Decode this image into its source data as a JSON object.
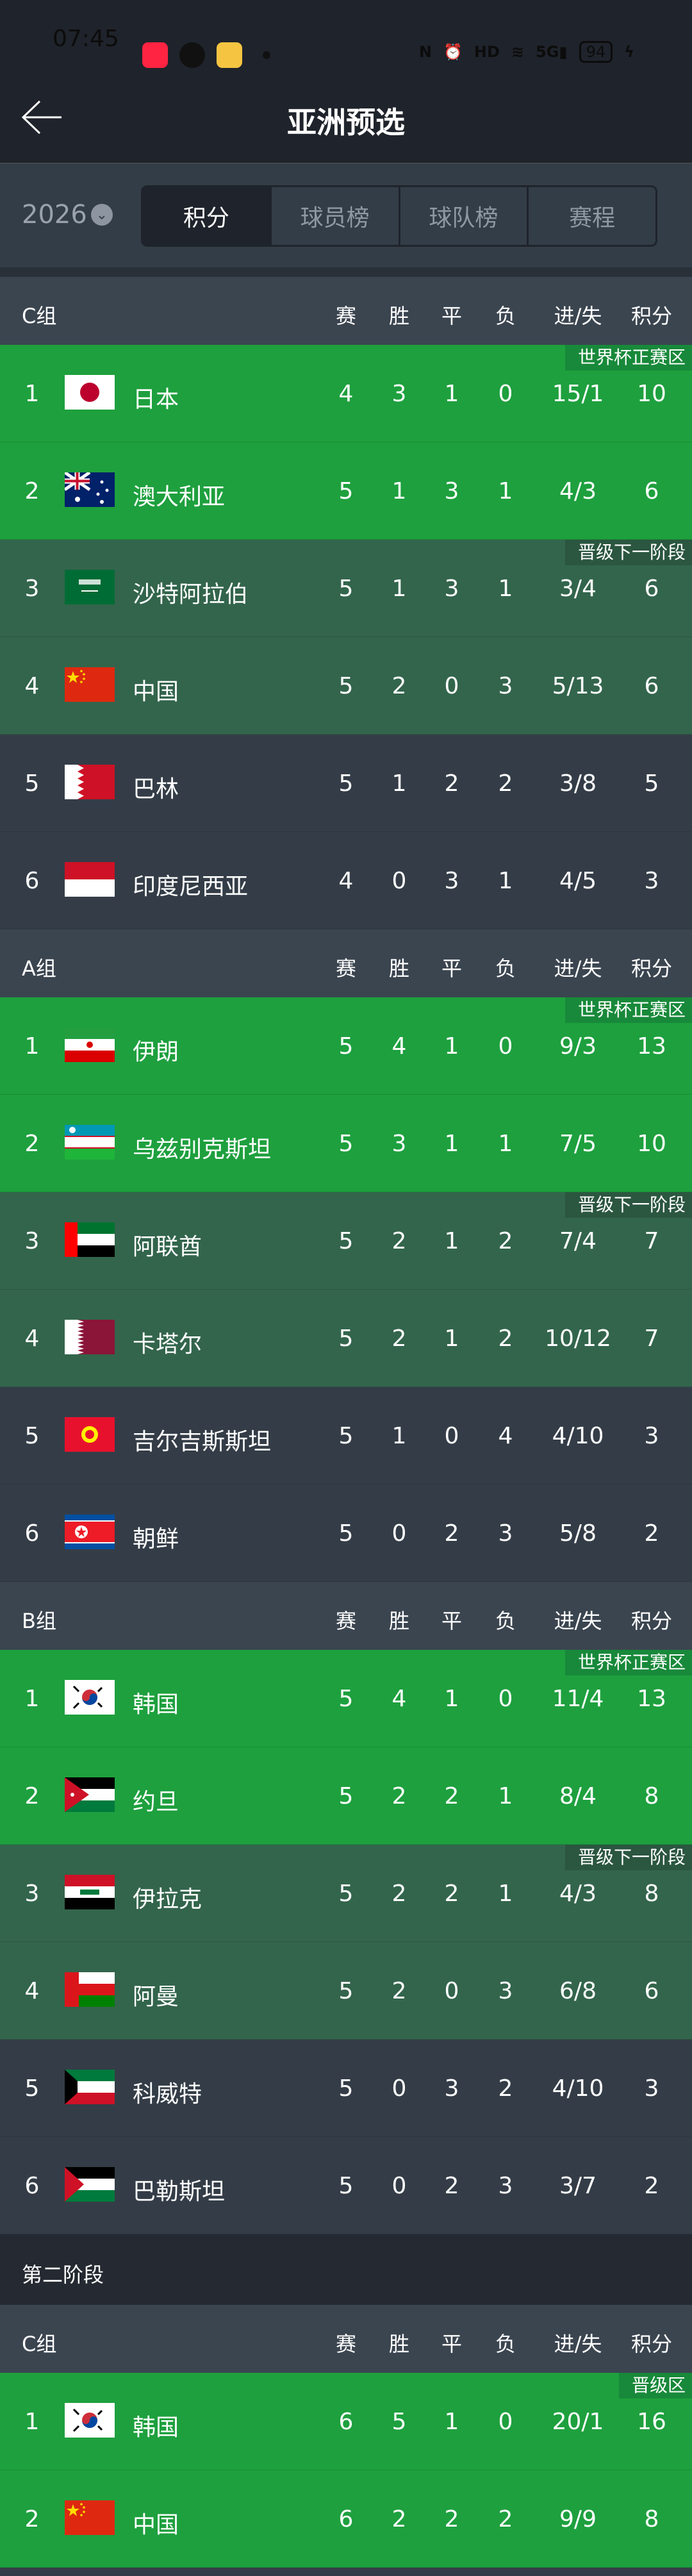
{
  "status_bar": {
    "time": "07:45",
    "battery": "94",
    "icons": [
      "xiaohongshu-app-icon",
      "settings-app-icon",
      "weibo-app-icon",
      "nfc-icon",
      "alarm-icon",
      "hd-icon",
      "wifi-icon",
      "5g-signal-icon",
      "charging-icon"
    ]
  },
  "header": {
    "title": "亚洲预选",
    "back_icon": "arrow-left-icon"
  },
  "filters": {
    "year": "2026",
    "tabs": [
      {
        "label": "积分",
        "active": true
      },
      {
        "label": "球员榜",
        "active": false
      },
      {
        "label": "球队榜",
        "active": false
      },
      {
        "label": "赛程",
        "active": false
      }
    ]
  },
  "columns": [
    "赛",
    "胜",
    "平",
    "负",
    "进/失",
    "积分"
  ],
  "zone_colors": {
    "green": "#1ea03e",
    "dkgreen": "#33654c",
    "gray": "#343d47"
  },
  "sections": [
    {
      "groups": [
        {
          "name": "C组",
          "rows": [
            {
              "rank": "1",
              "flag": "japan",
              "team": "日本",
              "p": "4",
              "w": "3",
              "d": "1",
              "l": "0",
              "gd": "15/1",
              "pts": "10",
              "zone": "green",
              "badge": "世界杯正赛区"
            },
            {
              "rank": "2",
              "flag": "australia",
              "team": "澳大利亚",
              "p": "5",
              "w": "1",
              "d": "3",
              "l": "1",
              "gd": "4/3",
              "pts": "6",
              "zone": "green"
            },
            {
              "rank": "3",
              "flag": "saudi",
              "team": "沙特阿拉伯",
              "p": "5",
              "w": "1",
              "d": "3",
              "l": "1",
              "gd": "3/4",
              "pts": "6",
              "zone": "dkgreen",
              "badge": "晋级下一阶段"
            },
            {
              "rank": "4",
              "flag": "china",
              "team": "中国",
              "p": "5",
              "w": "2",
              "d": "0",
              "l": "3",
              "gd": "5/13",
              "pts": "6",
              "zone": "dkgreen"
            },
            {
              "rank": "5",
              "flag": "bahrain",
              "team": "巴林",
              "p": "5",
              "w": "1",
              "d": "2",
              "l": "2",
              "gd": "3/8",
              "pts": "5",
              "zone": "gray"
            },
            {
              "rank": "6",
              "flag": "indonesia",
              "team": "印度尼西亚",
              "p": "4",
              "w": "0",
              "d": "3",
              "l": "1",
              "gd": "4/5",
              "pts": "3",
              "zone": "gray"
            }
          ]
        },
        {
          "name": "A组",
          "rows": [
            {
              "rank": "1",
              "flag": "iran",
              "team": "伊朗",
              "p": "5",
              "w": "4",
              "d": "1",
              "l": "0",
              "gd": "9/3",
              "pts": "13",
              "zone": "green",
              "badge": "世界杯正赛区"
            },
            {
              "rank": "2",
              "flag": "uzbekistan",
              "team": "乌兹别克斯坦",
              "p": "5",
              "w": "3",
              "d": "1",
              "l": "1",
              "gd": "7/5",
              "pts": "10",
              "zone": "green"
            },
            {
              "rank": "3",
              "flag": "uae",
              "team": "阿联酋",
              "p": "5",
              "w": "2",
              "d": "1",
              "l": "2",
              "gd": "7/4",
              "pts": "7",
              "zone": "dkgreen",
              "badge": "晋级下一阶段"
            },
            {
              "rank": "4",
              "flag": "qatar",
              "team": "卡塔尔",
              "p": "5",
              "w": "2",
              "d": "1",
              "l": "2",
              "gd": "10/12",
              "pts": "7",
              "zone": "dkgreen"
            },
            {
              "rank": "5",
              "flag": "kyrgyzstan",
              "team": "吉尔吉斯斯坦",
              "p": "5",
              "w": "1",
              "d": "0",
              "l": "4",
              "gd": "4/10",
              "pts": "3",
              "zone": "gray"
            },
            {
              "rank": "6",
              "flag": "northkorea",
              "team": "朝鲜",
              "p": "5",
              "w": "0",
              "d": "2",
              "l": "3",
              "gd": "5/8",
              "pts": "2",
              "zone": "gray"
            }
          ]
        },
        {
          "name": "B组",
          "rows": [
            {
              "rank": "1",
              "flag": "korea",
              "team": "韩国",
              "p": "5",
              "w": "4",
              "d": "1",
              "l": "0",
              "gd": "11/4",
              "pts": "13",
              "zone": "green",
              "badge": "世界杯正赛区"
            },
            {
              "rank": "2",
              "flag": "jordan",
              "team": "约旦",
              "p": "5",
              "w": "2",
              "d": "2",
              "l": "1",
              "gd": "8/4",
              "pts": "8",
              "zone": "green"
            },
            {
              "rank": "3",
              "flag": "iraq",
              "team": "伊拉克",
              "p": "5",
              "w": "2",
              "d": "2",
              "l": "1",
              "gd": "4/3",
              "pts": "8",
              "zone": "dkgreen",
              "badge": "晋级下一阶段"
            },
            {
              "rank": "4",
              "flag": "oman",
              "team": "阿曼",
              "p": "5",
              "w": "2",
              "d": "0",
              "l": "3",
              "gd": "6/8",
              "pts": "6",
              "zone": "dkgreen"
            },
            {
              "rank": "5",
              "flag": "kuwait",
              "team": "科威特",
              "p": "5",
              "w": "0",
              "d": "3",
              "l": "2",
              "gd": "4/10",
              "pts": "3",
              "zone": "gray"
            },
            {
              "rank": "6",
              "flag": "palestine",
              "team": "巴勒斯坦",
              "p": "5",
              "w": "0",
              "d": "2",
              "l": "3",
              "gd": "3/7",
              "pts": "2",
              "zone": "gray"
            }
          ]
        }
      ]
    },
    {
      "title": "第二阶段",
      "groups": [
        {
          "name": "C组",
          "rows": [
            {
              "rank": "1",
              "flag": "korea",
              "team": "韩国",
              "p": "6",
              "w": "5",
              "d": "1",
              "l": "0",
              "gd": "20/1",
              "pts": "16",
              "zone": "green",
              "badge": "晋级区"
            },
            {
              "rank": "2",
              "flag": "china",
              "team": "中国",
              "p": "6",
              "w": "2",
              "d": "2",
              "l": "2",
              "gd": "9/9",
              "pts": "8",
              "zone": "green"
            }
          ]
        }
      ]
    }
  ]
}
